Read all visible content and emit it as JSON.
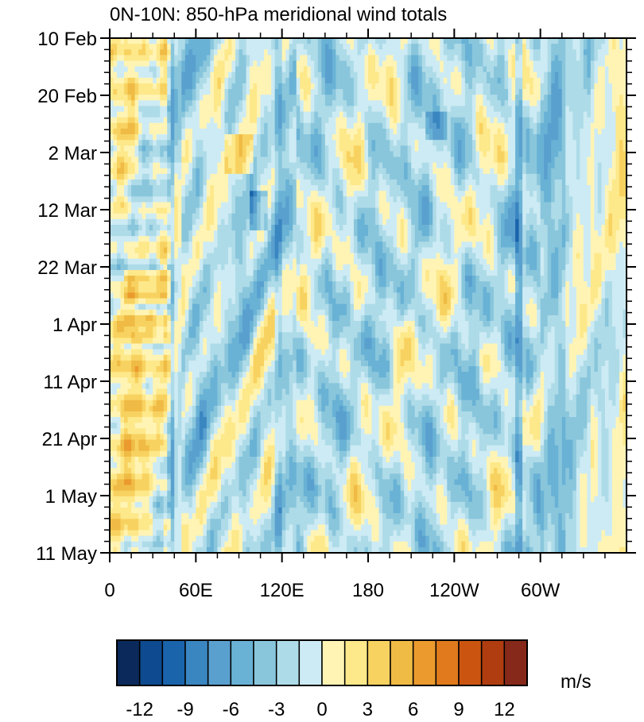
{
  "chart_data": {
    "type": "heatmap",
    "title": "0N-10N: 850-hPa meridional wind totals",
    "x_ticks": [
      "0",
      "60E",
      "120E",
      "180",
      "120W",
      "60W"
    ],
    "x_tick_degrees": [
      0,
      60,
      120,
      180,
      240,
      300
    ],
    "xlim_degrees": [
      0,
      360
    ],
    "y_ticks": [
      "10 Feb",
      "20 Feb",
      "2 Mar",
      "12 Mar",
      "22 Mar",
      "1 Apr",
      "11 Apr",
      "21 Apr",
      "1 May",
      "11 May"
    ],
    "y_direction": "time increases downward",
    "ylim": [
      "10 Feb",
      "11 May"
    ],
    "grid": false,
    "colorbar": {
      "orientation": "horizontal",
      "placement": "bottom",
      "units": "m/s",
      "levels": [
        -12,
        -9,
        -6,
        -3,
        0,
        3,
        6,
        9,
        12
      ],
      "level_labels": [
        "-12",
        "-9",
        "-6",
        "-3",
        "0",
        "3",
        "6",
        "9",
        "12"
      ],
      "bins": [
        {
          "range": "< -12",
          "color": "#0b2a5b"
        },
        {
          "range": "-12 to -10.5",
          "color": "#0d4a8f"
        },
        {
          "range": "-10.5 to -9",
          "color": "#1a64ab"
        },
        {
          "range": "-9 to -7.5",
          "color": "#3a86c1"
        },
        {
          "range": "-7.5 to -6",
          "color": "#5aa0cf"
        },
        {
          "range": "-6 to -4.5",
          "color": "#69b2d5"
        },
        {
          "range": "-4.5 to -3",
          "color": "#89c6dc"
        },
        {
          "range": "-3 to -1.5",
          "color": "#aedbe8"
        },
        {
          "range": "-1.5 to 0",
          "color": "#cdebf4"
        },
        {
          "range": "0 to 1.5",
          "color": "#fff4b4"
        },
        {
          "range": "1.5 to 3",
          "color": "#fde88a"
        },
        {
          "range": "3 to 4.5",
          "color": "#f8d260"
        },
        {
          "range": "4.5 to 6",
          "color": "#efbb45"
        },
        {
          "range": "6 to 7.5",
          "color": "#eb9a2e"
        },
        {
          "range": "7.5 to 9",
          "color": "#e07a1d"
        },
        {
          "range": "9 to 10.5",
          "color": "#cb5510"
        },
        {
          "range": "10.5 to 12",
          "color": "#b03d10"
        },
        {
          "range": "> 12",
          "color": "#86291a"
        }
      ]
    }
  }
}
